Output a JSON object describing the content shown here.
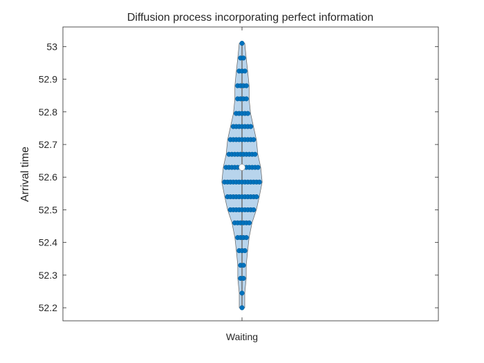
{
  "chart_data": {
    "type": "violin-swarm",
    "title": "Diffusion process incorporating perfect information",
    "xlabel": "",
    "ylabel": "Arrival time",
    "categories": [
      "Waiting"
    ],
    "ylim": [
      52.16,
      53.06
    ],
    "yticks": [
      52.2,
      52.3,
      52.4,
      52.5,
      52.6,
      52.7,
      52.8,
      52.9,
      53
    ],
    "ytick_labels": [
      "52.2",
      "52.3",
      "52.4",
      "52.5",
      "52.6",
      "52.7",
      "52.8",
      "52.9",
      "53"
    ],
    "median": 52.63,
    "levels": [
      {
        "y": 52.2,
        "count": 1
      },
      {
        "y": 52.245,
        "count": 1
      },
      {
        "y": 52.29,
        "count": 2
      },
      {
        "y": 52.33,
        "count": 2
      },
      {
        "y": 52.375,
        "count": 3
      },
      {
        "y": 52.415,
        "count": 4
      },
      {
        "y": 52.46,
        "count": 6
      },
      {
        "y": 52.5,
        "count": 9
      },
      {
        "y": 52.54,
        "count": 11
      },
      {
        "y": 52.585,
        "count": 13
      },
      {
        "y": 52.63,
        "count": 12
      },
      {
        "y": 52.67,
        "count": 10
      },
      {
        "y": 52.715,
        "count": 9
      },
      {
        "y": 52.755,
        "count": 7
      },
      {
        "y": 52.795,
        "count": 5
      },
      {
        "y": 52.84,
        "count": 4
      },
      {
        "y": 52.88,
        "count": 4
      },
      {
        "y": 52.925,
        "count": 3
      },
      {
        "y": 52.965,
        "count": 2
      },
      {
        "y": 53.01,
        "count": 1
      }
    ],
    "grid": false,
    "colors": {
      "point": "#0072BD",
      "violin_fill": "#b8d4ec",
      "violin_edge": "#606060",
      "median_marker": "#ffffff",
      "axis": "#262626"
    }
  }
}
